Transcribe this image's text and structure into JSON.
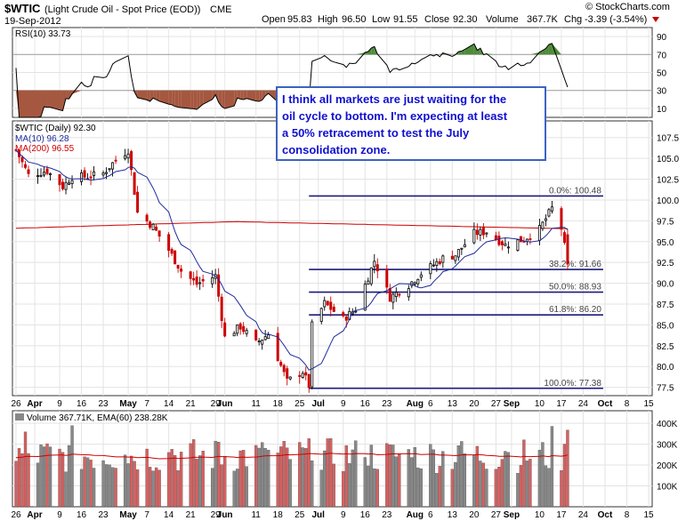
{
  "header": {
    "symbol": "$WTIC",
    "name": "(Light Crude Oil - Spot Price (EOD))",
    "exchange": "CME",
    "date": "19-Sep-2012",
    "watermark": "© StockCharts.com",
    "open_label": "Open",
    "open": "95.83",
    "high_label": "High",
    "high": "96.50",
    "low_label": "Low",
    "low": "91.55",
    "close_label": "Close",
    "close": "92.30",
    "volume_label": "Volume",
    "volume": "367.7K",
    "chg_label": "Chg",
    "chg": "-3.39 (-3.54%)"
  },
  "rsi_panel": {
    "legend": "RSI(10) 33.73",
    "levels": [
      90,
      70,
      50,
      30,
      10
    ]
  },
  "price_panel": {
    "legend_main": "$WTIC (Daily) 92.30",
    "legend_ma10": "MA(10) 96.28",
    "legend_ma200": "MA(200) 96.55",
    "y_ticks": [
      "107.5",
      "105.0",
      "102.5",
      "100.0",
      "97.5",
      "95.0",
      "92.5",
      "90.0",
      "87.5",
      "85.0",
      "82.5",
      "80.0",
      "77.5"
    ]
  },
  "annotation": {
    "lines": [
      "I think all markets are just waiting for the",
      "oil cycle to bottom. I'm expecting at least",
      "a 50% retracement to test the July",
      "consolidation zone."
    ]
  },
  "fib_labels": [
    "0.0%: 100.48",
    "38.2%: 91.66",
    "50.0%: 88.93",
    "61.8%: 86.20",
    "100.0%: 77.38"
  ],
  "volume_panel": {
    "legend": "Volume 367.71K, EMA(60) 238.28K",
    "y_ticks": [
      "400K",
      "300K",
      "200K",
      "100K"
    ]
  },
  "x_axis_labels": [
    "26",
    "Apr",
    "9",
    "16",
    "23",
    "May",
    "7",
    "14",
    "21",
    "29",
    "Jun",
    "11",
    "18",
    "25",
    "Jul",
    "9",
    "16",
    "23",
    "Aug",
    "6",
    "13",
    "20",
    "27",
    "Sep",
    "10",
    "17",
    "24",
    "Oct",
    "8",
    "15"
  ],
  "colors": {
    "up": "#000000",
    "down": "#cc0000",
    "ma10": "#1f2c9c",
    "ma200": "#cc0000",
    "fib": "#1a1a7a",
    "note": "#1010d0",
    "rsi_fill_low": "#a5573f",
    "rsi_fill_high": "#4f8a3a",
    "vol_up": "#888888",
    "vol_down": "#d96060"
  },
  "chart_data": {
    "type": "candlestick",
    "title": "$WTIC (Light Crude Oil - Spot Price (EOD))",
    "x_start": "2012-03-26",
    "x_end": "2012-10-15",
    "ylim": [
      76.5,
      109.5
    ],
    "fib_levels": [
      {
        "label": "0.0%",
        "value": 100.48
      },
      {
        "label": "38.2%",
        "value": 91.66
      },
      {
        "label": "50.0%",
        "value": 88.93
      },
      {
        "label": "61.8%",
        "value": 86.2
      },
      {
        "label": "100.0%",
        "value": 77.38
      }
    ],
    "close_series": [
      [
        "2012-03-26",
        106.0
      ],
      [
        "2012-03-30",
        103.0
      ],
      [
        "2012-04-05",
        103.5
      ],
      [
        "2012-04-10",
        101.6
      ],
      [
        "2012-04-13",
        102.8
      ],
      [
        "2012-04-18",
        102.8
      ],
      [
        "2012-04-23",
        103.2
      ],
      [
        "2012-04-27",
        104.8
      ],
      [
        "2012-05-01",
        106.0
      ],
      [
        "2012-05-04",
        98.5
      ],
      [
        "2012-05-09",
        96.8
      ],
      [
        "2012-05-14",
        94.0
      ],
      [
        "2012-05-18",
        91.5
      ],
      [
        "2012-05-23",
        89.9
      ],
      [
        "2012-05-29",
        90.9
      ],
      [
        "2012-06-01",
        83.5
      ],
      [
        "2012-06-06",
        84.8
      ],
      [
        "2012-06-11",
        82.8
      ],
      [
        "2012-06-15",
        83.9
      ],
      [
        "2012-06-21",
        78.2
      ],
      [
        "2012-06-26",
        79.4
      ],
      [
        "2012-06-28",
        77.7
      ],
      [
        "2012-06-29",
        84.9
      ],
      [
        "2012-07-03",
        87.6
      ],
      [
        "2012-07-09",
        85.7
      ],
      [
        "2012-07-13",
        86.9
      ],
      [
        "2012-07-19",
        92.7
      ],
      [
        "2012-07-24",
        88.3
      ],
      [
        "2012-07-30",
        89.8
      ],
      [
        "2012-08-03",
        91.2
      ],
      [
        "2012-08-10",
        93.0
      ],
      [
        "2012-08-14",
        93.4
      ],
      [
        "2012-08-20",
        96.0
      ],
      [
        "2012-08-24",
        96.2
      ],
      [
        "2012-08-30",
        94.6
      ],
      [
        "2012-09-05",
        95.3
      ],
      [
        "2012-09-10",
        96.5
      ],
      [
        "2012-09-14",
        99.0
      ],
      [
        "2012-09-17",
        96.6
      ],
      [
        "2012-09-19",
        92.3
      ]
    ],
    "ma10_last": 96.28,
    "ma200_last": 96.55,
    "rsi_last": 33.73,
    "volume_last": 367.71,
    "volume_ema60_last": 238.28
  }
}
